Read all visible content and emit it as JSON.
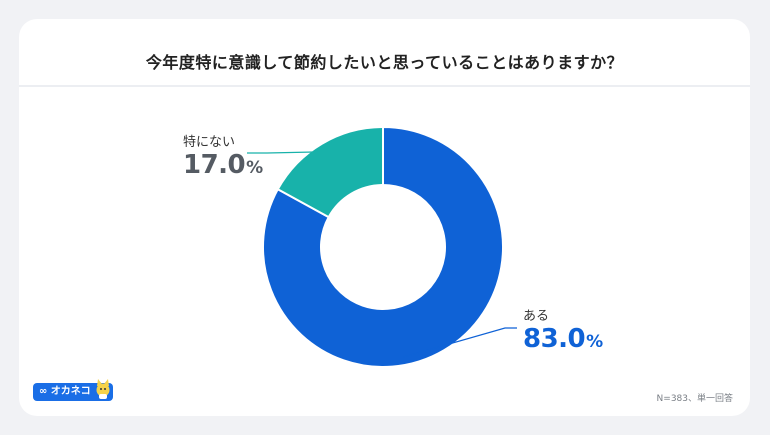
{
  "title": "今年度特に意識して節約したいと思っていることはありますか？",
  "note": "N=383、単一回答",
  "logo": {
    "text": "∞ オカネコ"
  },
  "colors": {
    "primary": "#0f62d6",
    "secondary": "#18b2aa",
    "background": "#f1f2f5"
  },
  "chart_data": {
    "type": "pie",
    "donut": true,
    "title": "今年度特に意識して節約したいと思っていることはありますか？",
    "unit": "%",
    "slices": [
      {
        "label": "ある",
        "value": 83.0,
        "display": "83.0",
        "color": "#0f62d6"
      },
      {
        "label": "特にない",
        "value": 17.0,
        "display": "17.0",
        "color": "#18b2aa"
      }
    ]
  }
}
